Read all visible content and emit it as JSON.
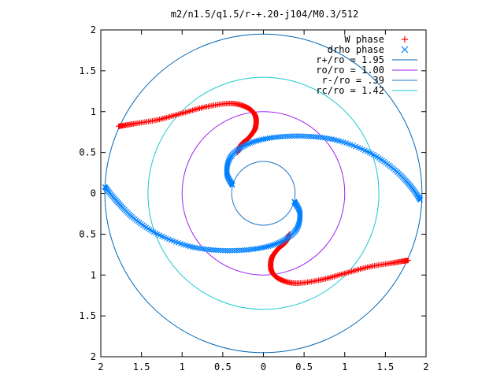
{
  "chart_data": {
    "type": "scatter",
    "title": "m2/n1.5/q1.5/r-+.20-j104/M0.3/512",
    "xlabel": "",
    "ylabel": "",
    "xlim": [
      -2,
      2
    ],
    "ylim": [
      -2,
      2
    ],
    "x_ticks": [
      "2",
      "1.5",
      "1",
      "0.5",
      "0",
      "0.5",
      "1",
      "1.5",
      "2"
    ],
    "y_ticks": [
      "2",
      "1.5",
      "1",
      "0.5",
      "0",
      "0.5",
      "1",
      "1.5",
      "2"
    ],
    "grid": false,
    "legend_position": "top-right",
    "circles": [
      {
        "label": "r+/ro = 1.95",
        "radius": 1.95,
        "color": "#0066b3"
      },
      {
        "label": "ro/ro = 1.00",
        "radius": 1.0,
        "color": "#a020f0"
      },
      {
        "label": "r-/ro = .39",
        "radius": 0.39,
        "color": "#1f77c8"
      },
      {
        "label": "rc/ro = 1.42",
        "radius": 1.42,
        "color": "#19c8d0"
      }
    ],
    "series": [
      {
        "name": "W phase",
        "marker": "+",
        "color": "#ff0000",
        "arms": [
          [
            [
              -1.78,
              0.82
            ],
            [
              -1.6,
              0.85
            ],
            [
              -1.3,
              0.9
            ],
            [
              -1.0,
              0.98
            ],
            [
              -0.7,
              1.06
            ],
            [
              -0.4,
              1.1
            ],
            [
              -0.2,
              1.05
            ],
            [
              -0.1,
              0.95
            ],
            [
              -0.1,
              0.8
            ],
            [
              -0.18,
              0.68
            ],
            [
              -0.27,
              0.6
            ],
            [
              -0.32,
              0.5
            ]
          ],
          [
            [
              1.78,
              -0.82
            ],
            [
              1.6,
              -0.85
            ],
            [
              1.3,
              -0.9
            ],
            [
              1.0,
              -0.98
            ],
            [
              0.7,
              -1.06
            ],
            [
              0.4,
              -1.1
            ],
            [
              0.2,
              -1.05
            ],
            [
              0.1,
              -0.95
            ],
            [
              0.1,
              -0.8
            ],
            [
              0.18,
              -0.68
            ],
            [
              0.27,
              -0.6
            ],
            [
              0.32,
              -0.5
            ]
          ]
        ]
      },
      {
        "name": "drho phase",
        "marker": "x",
        "color": "#0080ff",
        "arms": [
          [
            [
              -0.38,
              0.1
            ],
            [
              -0.45,
              0.25
            ],
            [
              -0.4,
              0.45
            ],
            [
              -0.2,
              0.6
            ],
            [
              0.1,
              0.68
            ],
            [
              0.5,
              0.7
            ],
            [
              0.9,
              0.65
            ],
            [
              1.3,
              0.5
            ],
            [
              1.6,
              0.3
            ],
            [
              1.8,
              0.1
            ],
            [
              1.93,
              -0.08
            ]
          ],
          [
            [
              0.38,
              -0.1
            ],
            [
              0.45,
              -0.25
            ],
            [
              0.4,
              -0.45
            ],
            [
              0.2,
              -0.6
            ],
            [
              -0.1,
              -0.68
            ],
            [
              -0.5,
              -0.7
            ],
            [
              -0.9,
              -0.65
            ],
            [
              -1.3,
              -0.5
            ],
            [
              -1.6,
              -0.3
            ],
            [
              -1.8,
              -0.1
            ],
            [
              -1.95,
              0.08
            ]
          ]
        ]
      }
    ]
  }
}
